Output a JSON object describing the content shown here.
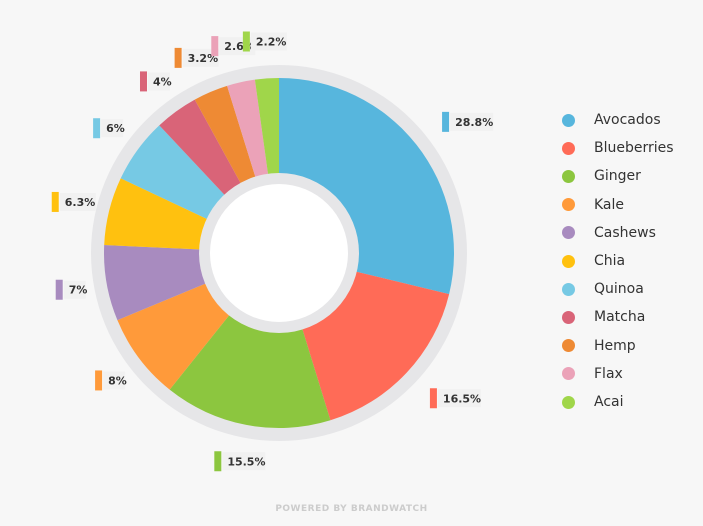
{
  "chart_data": {
    "type": "pie",
    "donut": true,
    "categories": [
      "Avocados",
      "Blueberries",
      "Ginger",
      "Kale",
      "Cashews",
      "Chia",
      "Quinoa",
      "Matcha",
      "Hemp",
      "Flax",
      "Acai"
    ],
    "values": [
      28.8,
      16.5,
      15.5,
      8,
      7,
      6.3,
      6,
      4,
      3.2,
      2.6,
      2.2
    ],
    "value_labels": [
      "28.8%",
      "16.5%",
      "15.5%",
      "8%",
      "7%",
      "6.3%",
      "6%",
      "4%",
      "3.2%",
      "2.6%",
      "2.2%"
    ],
    "colors": [
      "#57b6dd",
      "#ff6b57",
      "#8cc63f",
      "#ff9a3a",
      "#a88bbf",
      "#ffc10f",
      "#76c9e4",
      "#d96478",
      "#ee8a34",
      "#eba2b8",
      "#a0d64a"
    ],
    "legend_position": "right",
    "unit": "%"
  },
  "footer": {
    "text": "POWERED BY BRANDWATCH"
  }
}
